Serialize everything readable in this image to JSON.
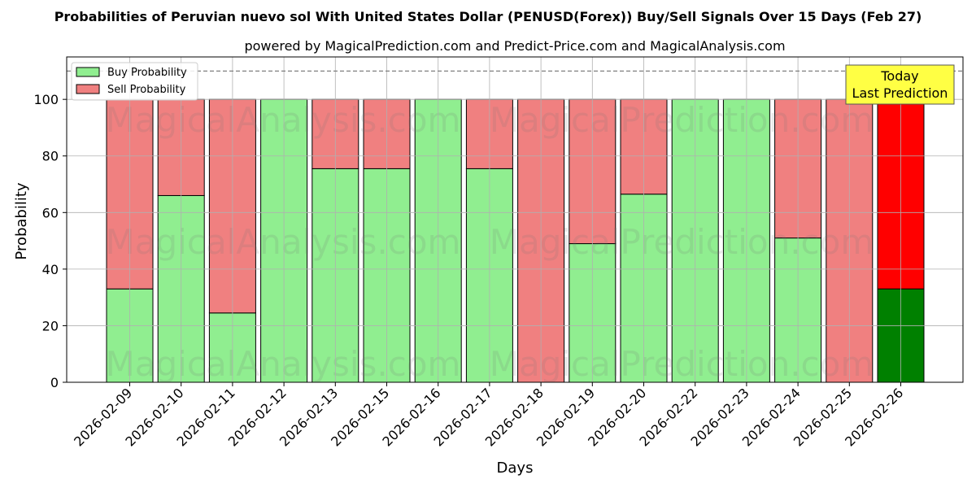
{
  "chart_data": {
    "type": "bar",
    "stacked": true,
    "title": "Probabilities of Peruvian nuevo sol With United States Dollar (PENUSD(Forex)) Buy/Sell Signals Over 15 Days (Feb 27)",
    "subtitle": "powered by MagicalPrediction.com and Predict-Price.com and MagicalAnalysis.com",
    "xlabel": "Days",
    "ylabel": "Probability",
    "ylim": [
      0,
      115
    ],
    "yticks": [
      0,
      20,
      40,
      60,
      80,
      100
    ],
    "reference_line": 110,
    "grid": true,
    "legend_position": "top-left",
    "categories": [
      "2026-02-09",
      "2026-02-10",
      "2026-02-11",
      "2026-02-12",
      "2026-02-13",
      "2026-02-15",
      "2026-02-16",
      "2026-02-17",
      "2026-02-18",
      "2026-02-19",
      "2026-02-20",
      "2026-02-22",
      "2026-02-23",
      "2026-02-24",
      "2026-02-25",
      "2026-02-26"
    ],
    "series": [
      {
        "name": "Buy Probability",
        "color": "#90ee90",
        "values": [
          33,
          66,
          24.5,
          100,
          75.5,
          75.5,
          100,
          75.5,
          0,
          49,
          66.5,
          100,
          100,
          51,
          0,
          33
        ]
      },
      {
        "name": "Sell Probability",
        "color": "#f08080",
        "values": [
          67,
          34,
          75.5,
          0,
          24.5,
          24.5,
          0,
          24.5,
          100,
          51,
          33.5,
          0,
          0,
          49,
          100,
          67
        ]
      }
    ],
    "highlight": {
      "index": 15,
      "buy_color": "#008000",
      "sell_color": "#ff0000"
    },
    "annotation": {
      "line1": "Today",
      "line2": "Last Prediction",
      "background": "#ffff44"
    },
    "watermarks": [
      "MagicalAnalysis.com",
      "MagicalPrediction.com"
    ]
  }
}
